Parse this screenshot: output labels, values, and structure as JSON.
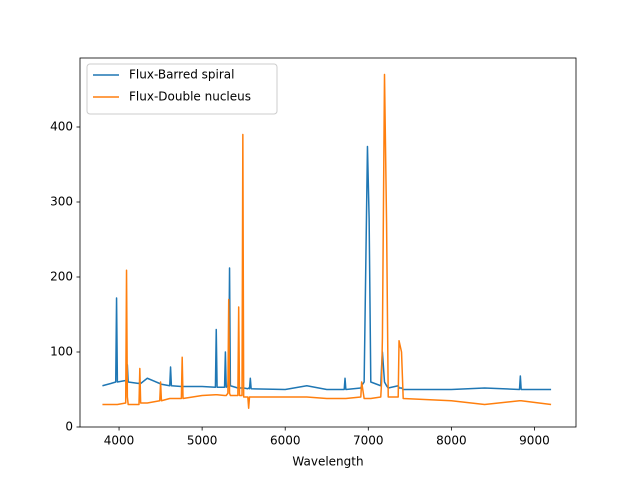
{
  "chart_data": {
    "type": "line",
    "xlabel": "Wavelength",
    "x": [
      3800,
      3900,
      3960,
      3970,
      3980,
      4080,
      4090,
      4100,
      4110,
      4240,
      4250,
      4260,
      4340,
      4490,
      4500,
      4510,
      4610,
      4620,
      4630,
      4750,
      4760,
      4770,
      5000,
      5160,
      5170,
      5180,
      5270,
      5280,
      5290,
      5310,
      5320,
      5330,
      5340,
      5430,
      5440,
      5450,
      5480,
      5490,
      5500,
      5550,
      5560,
      5570,
      5580,
      5590,
      6000,
      6260,
      6500,
      6710,
      6720,
      6730,
      6910,
      6920,
      6950,
      6960,
      6990,
      7010,
      7030,
      7150,
      7160,
      7170,
      7195,
      7220,
      7240,
      7360,
      7370,
      7400,
      7420,
      8000,
      8400,
      8820,
      8830,
      8840,
      9200
    ],
    "series": [
      {
        "name": "Flux-Barred spiral",
        "color": "#1f77b4",
        "values": [
          55,
          58,
          60,
          172,
          60,
          62,
          58,
          83,
          60,
          58,
          60,
          58,
          65,
          58,
          57,
          57,
          55,
          80,
          55,
          54,
          55,
          54,
          54,
          53,
          130,
          53,
          53,
          100,
          53,
          55,
          70,
          212,
          55,
          52,
          52,
          52,
          52,
          52,
          52,
          51,
          52,
          51,
          65,
          51,
          50,
          55,
          50,
          50,
          65,
          50,
          52,
          55,
          60,
          138,
          374,
          278,
          60,
          55,
          80,
          100,
          60,
          55,
          52,
          55,
          52,
          52,
          50,
          50,
          52,
          50,
          68,
          50,
          50
        ]
      },
      {
        "name": "Flux-Double nucleus",
        "color": "#ff7f0e",
        "values": [
          30,
          30,
          30,
          30,
          30,
          32,
          209,
          40,
          30,
          30,
          78,
          32,
          32,
          35,
          60,
          35,
          38,
          38,
          38,
          38,
          93,
          38,
          42,
          43,
          43,
          43,
          42,
          42,
          42,
          45,
          170,
          45,
          42,
          42,
          160,
          42,
          42,
          390,
          40,
          40,
          25,
          40,
          40,
          40,
          40,
          40,
          38,
          38,
          38,
          38,
          40,
          60,
          38,
          38,
          38,
          38,
          38,
          40,
          60,
          120,
          470,
          272,
          40,
          40,
          115,
          100,
          38,
          35,
          30,
          35,
          35,
          35,
          30
        ]
      }
    ],
    "xlim": [
      3530,
      9500
    ],
    "xticks": [
      4000,
      5000,
      6000,
      7000,
      8000,
      9000
    ],
    "ylim": [
      0,
      492
    ],
    "yticks": [
      0,
      100,
      200,
      300,
      400
    ],
    "legend": "upper left",
    "grid": false
  }
}
